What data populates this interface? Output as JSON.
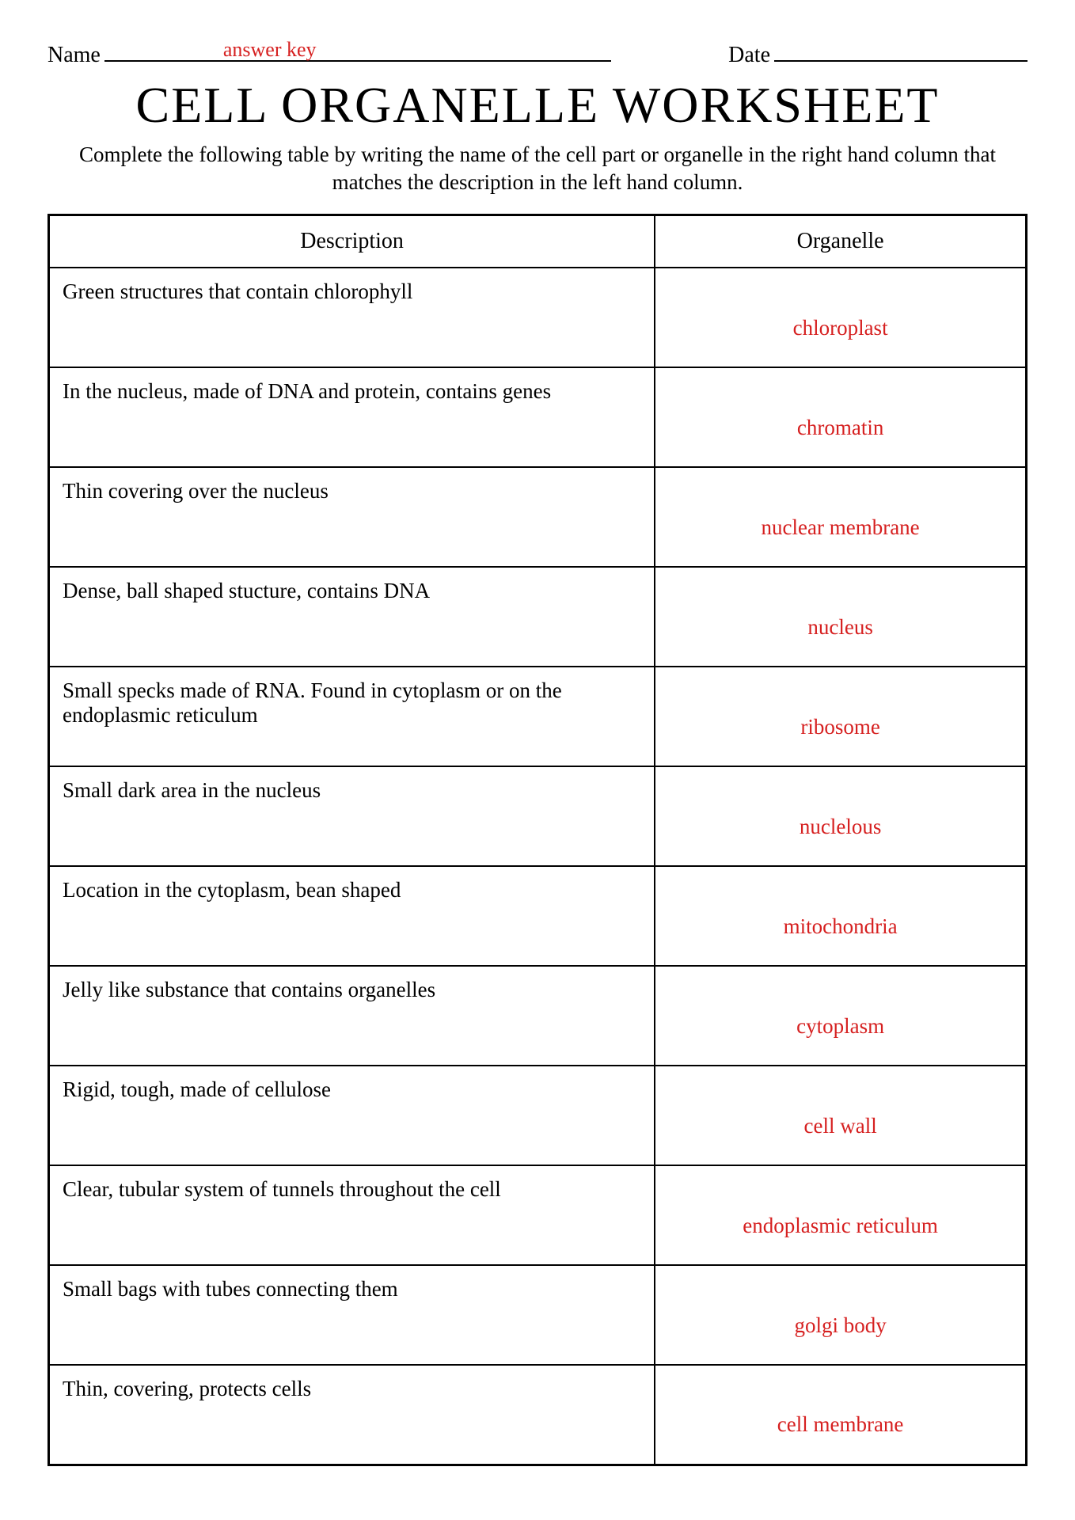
{
  "header": {
    "name_label": "Name",
    "answer_key": "answer key",
    "date_label": "Date"
  },
  "title": "CELL ORGANELLE WORKSHEET",
  "instructions": "Complete the following table by writing the name of the cell part or organelle in the right hand column that matches the description in the left hand column.",
  "table": {
    "columns": [
      "Description",
      "Organelle"
    ],
    "column_widths": [
      "62%",
      "38%"
    ],
    "rows": [
      {
        "description": "Green structures that contain chlorophyll",
        "organelle": "chloroplast"
      },
      {
        "description": "In the nucleus, made of DNA and protein, contains genes",
        "organelle": "chromatin"
      },
      {
        "description": "Thin covering over the nucleus",
        "organelle": "nuclear membrane"
      },
      {
        "description": "Dense, ball shaped stucture, contains DNA",
        "organelle": "nucleus"
      },
      {
        "description": "Small specks made of RNA. Found in cytoplasm or on the endoplasmic reticulum",
        "organelle": "ribosome"
      },
      {
        "description": "Small dark area in the nucleus",
        "organelle": "nuclelous"
      },
      {
        "description": "Location in the cytoplasm, bean shaped",
        "organelle": "mitochondria"
      },
      {
        "description": "Jelly like substance that contains organelles",
        "organelle": "cytoplasm"
      },
      {
        "description": "Rigid, tough, made of cellulose",
        "organelle": "cell wall"
      },
      {
        "description": "Clear, tubular system of tunnels throughout the cell",
        "organelle": "endoplasmic reticulum"
      },
      {
        "description": "Small bags with tubes connecting them",
        "organelle": "golgi body"
      },
      {
        "description": "Thin, covering, protects cells",
        "organelle": "cell membrane"
      }
    ],
    "answer_color": "#d62020",
    "text_color": "#000000",
    "border_color": "#000000",
    "background_color": "#ffffff",
    "header_fontsize": 28,
    "cell_fontsize": 27
  },
  "typography": {
    "title_fontsize": 64,
    "instructions_fontsize": 27,
    "header_label_fontsize": 28,
    "font_family": "Georgia, serif"
  }
}
